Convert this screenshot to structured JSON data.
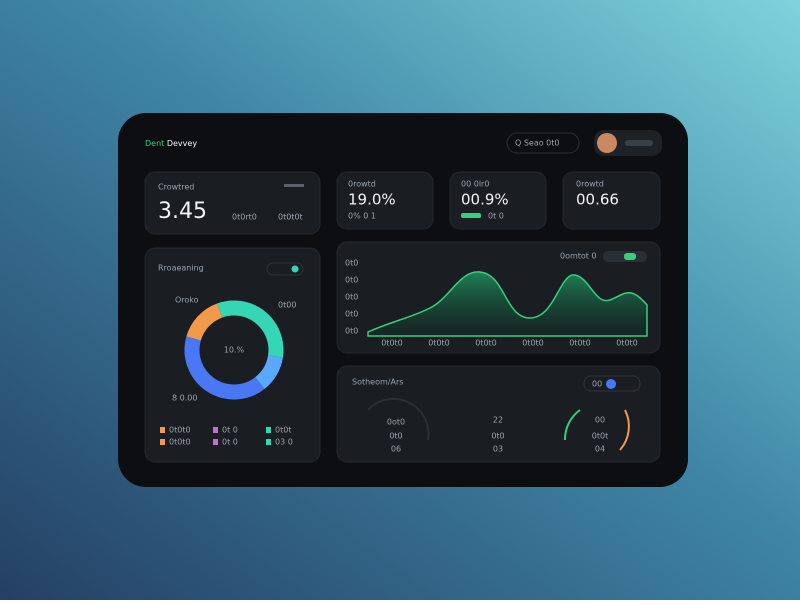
{
  "header": {
    "brand_accent": "Dent",
    "brand": "Devvey",
    "search": "Q  Seao  0t0"
  },
  "kpis": [
    {
      "label": "Crowtred",
      "value": "3.45",
      "sub1": "0t0rt0",
      "sub2": "0t0t0t"
    },
    {
      "label": "0rowtd",
      "value": "19.0%",
      "sub1": "0% 0 1"
    },
    {
      "label": "00 0lr0",
      "value": "00.9%",
      "sub1": "0t 0"
    },
    {
      "label": "0rowtd",
      "value": "00.66"
    }
  ],
  "donut_card": {
    "title": "Rroaeaning",
    "center": "10.%",
    "callouts": [
      "Oroko",
      "0t00",
      "8 0.00"
    ],
    "legend": [
      "0t0t0",
      "0t 0",
      "0t0t",
      "0t0t0",
      "0t 0",
      "03 0"
    ],
    "segments": [
      {
        "color": "#35d6b4",
        "value": 33
      },
      {
        "color": "#5aa8ff",
        "value": 12
      },
      {
        "color": "#4a78f5",
        "value": 40
      },
      {
        "color": "#f2994a",
        "value": 15
      }
    ]
  },
  "area_card": {
    "legend": "0omtot 0",
    "y_labels": [
      "0t0",
      "0t0",
      "0t0",
      "0t0",
      "0t0"
    ],
    "x_labels": [
      "0t0t0",
      "0t0t0",
      "0t0t0",
      "0t0t0",
      "0t0t0",
      "0t0t0"
    ]
  },
  "gauge_card": {
    "title": "Sotheom/Ars",
    "toggle": "00",
    "gauges": [
      {
        "value": "0ot0",
        "label": "0t0",
        "sub": "06"
      },
      {
        "value": "22",
        "label": "0t0",
        "sub": "03"
      },
      {
        "value": "00",
        "label": "0t0t",
        "sub": "04"
      }
    ]
  }
}
